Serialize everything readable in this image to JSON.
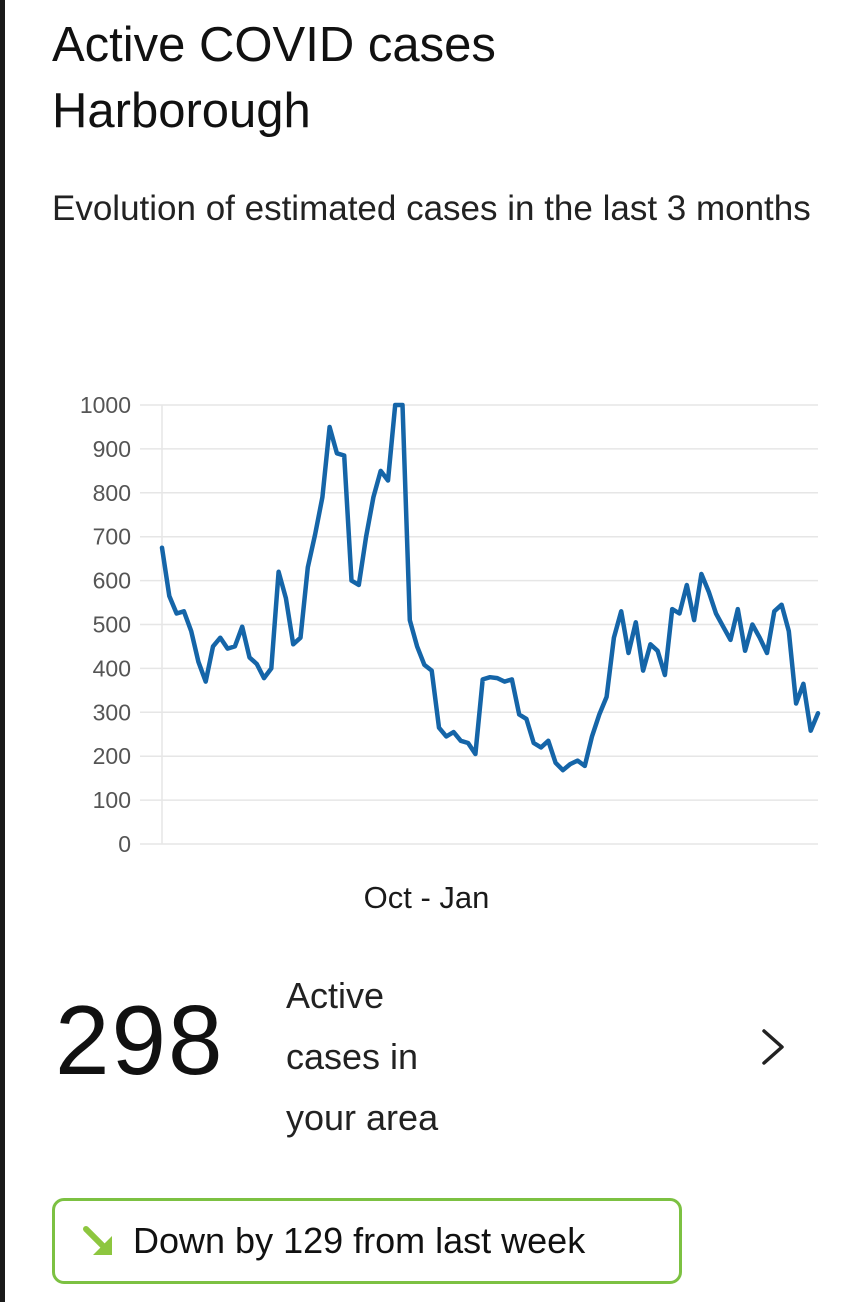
{
  "header": {
    "title_line1": "Active COVID cases",
    "title_line2": "Harborough",
    "subtitle": "Evolution of estimated cases in the last 3 months"
  },
  "summary": {
    "count": "298",
    "label_line1": "Active",
    "label_line2": "cases in",
    "label_line3": "your area",
    "chevron_icon": "chevron-right-icon"
  },
  "trend": {
    "icon": "arrow-down-right-icon",
    "icon_color": "#8dc63f",
    "text": "Down by 129 from last week"
  },
  "chart_data": {
    "type": "line",
    "title": "",
    "xlabel": "Oct - Jan",
    "ylabel": "",
    "ylim": [
      0,
      1000
    ],
    "yticks": [
      0,
      100,
      200,
      300,
      400,
      500,
      600,
      700,
      800,
      900,
      1000
    ],
    "grid": true,
    "legend": "none",
    "line_color": "#1565a8",
    "grid_color": "#e6e6e6",
    "tick_color": "#555555",
    "series": [
      {
        "values": [
          675,
          565,
          525,
          530,
          485,
          415,
          370,
          450,
          470,
          445,
          450,
          495,
          425,
          410,
          378,
          400,
          620,
          560,
          455,
          470,
          630,
          705,
          790,
          950,
          890,
          885,
          600,
          590,
          700,
          790,
          850,
          828,
          1000,
          1000,
          510,
          450,
          408,
          395,
          265,
          245,
          255,
          235,
          230,
          205,
          375,
          380,
          378,
          370,
          375,
          295,
          285,
          230,
          220,
          235,
          185,
          168,
          182,
          190,
          178,
          245,
          295,
          335,
          470,
          530,
          435,
          505,
          395,
          455,
          440,
          385,
          535,
          525,
          590,
          510,
          615,
          575,
          525,
          495,
          465,
          535,
          440,
          500,
          470,
          435,
          530,
          545,
          485,
          320,
          365,
          258,
          298
        ]
      }
    ]
  }
}
